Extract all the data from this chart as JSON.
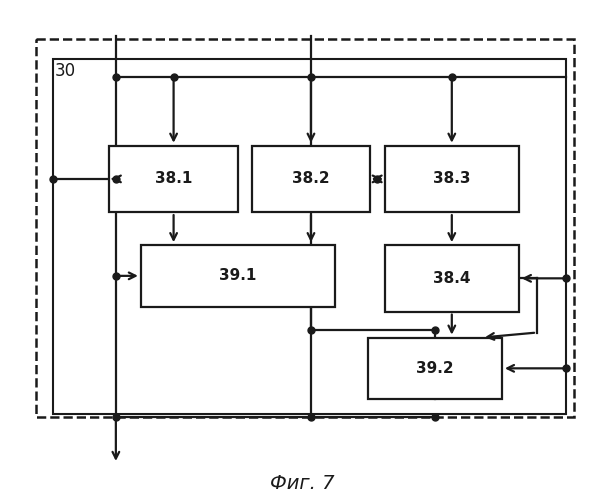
{
  "title": "Фиг. 7",
  "label_30": "30",
  "bg_color": "#ffffff",
  "line_color": "#1a1a1a",
  "fig_w": 6.05,
  "fig_h": 5.0
}
